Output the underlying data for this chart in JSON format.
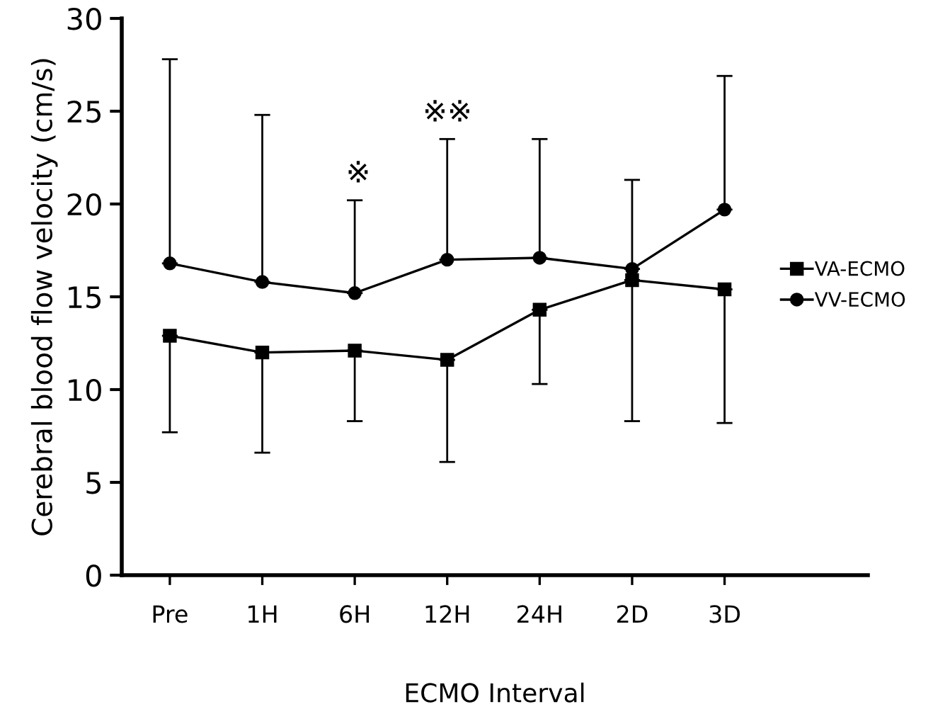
{
  "chart_data": {
    "type": "line",
    "xlabel": "ECMO Interval",
    "ylabel": "Cerebral blood flow velocity (cm/s)",
    "categories": [
      "Pre",
      "1H",
      "6H",
      "12H",
      "24H",
      "2D",
      "3D"
    ],
    "series": [
      {
        "name": "VA-ECMO",
        "color": "#000000",
        "marker": "square",
        "values": [
          12.9,
          12.0,
          12.1,
          11.6,
          14.3,
          15.9,
          15.4
        ],
        "errors": [
          [
            7.7,
            12.9
          ],
          [
            6.6,
            12.0
          ],
          [
            8.3,
            12.1
          ],
          [
            6.1,
            11.6
          ],
          [
            10.3,
            14.3
          ],
          [
            8.3,
            15.9
          ],
          [
            8.2,
            15.4
          ]
        ]
      },
      {
        "name": "VV-ECMO",
        "color": "#000000",
        "marker": "circle",
        "values": [
          16.8,
          15.8,
          15.2,
          17.0,
          17.1,
          16.5,
          19.7
        ],
        "errors": [
          [
            16.8,
            27.8
          ],
          [
            15.8,
            24.8
          ],
          [
            15.2,
            20.2
          ],
          [
            17.0,
            23.5
          ],
          [
            17.1,
            23.5
          ],
          [
            16.5,
            21.3
          ],
          [
            19.7,
            26.9
          ]
        ]
      }
    ],
    "annotations": [
      "※",
      "※※"
    ],
    "ylim": [
      0,
      30
    ],
    "yticks": [
      0,
      5,
      10,
      15,
      20,
      25,
      30
    ],
    "grid": false,
    "legend": "right"
  }
}
